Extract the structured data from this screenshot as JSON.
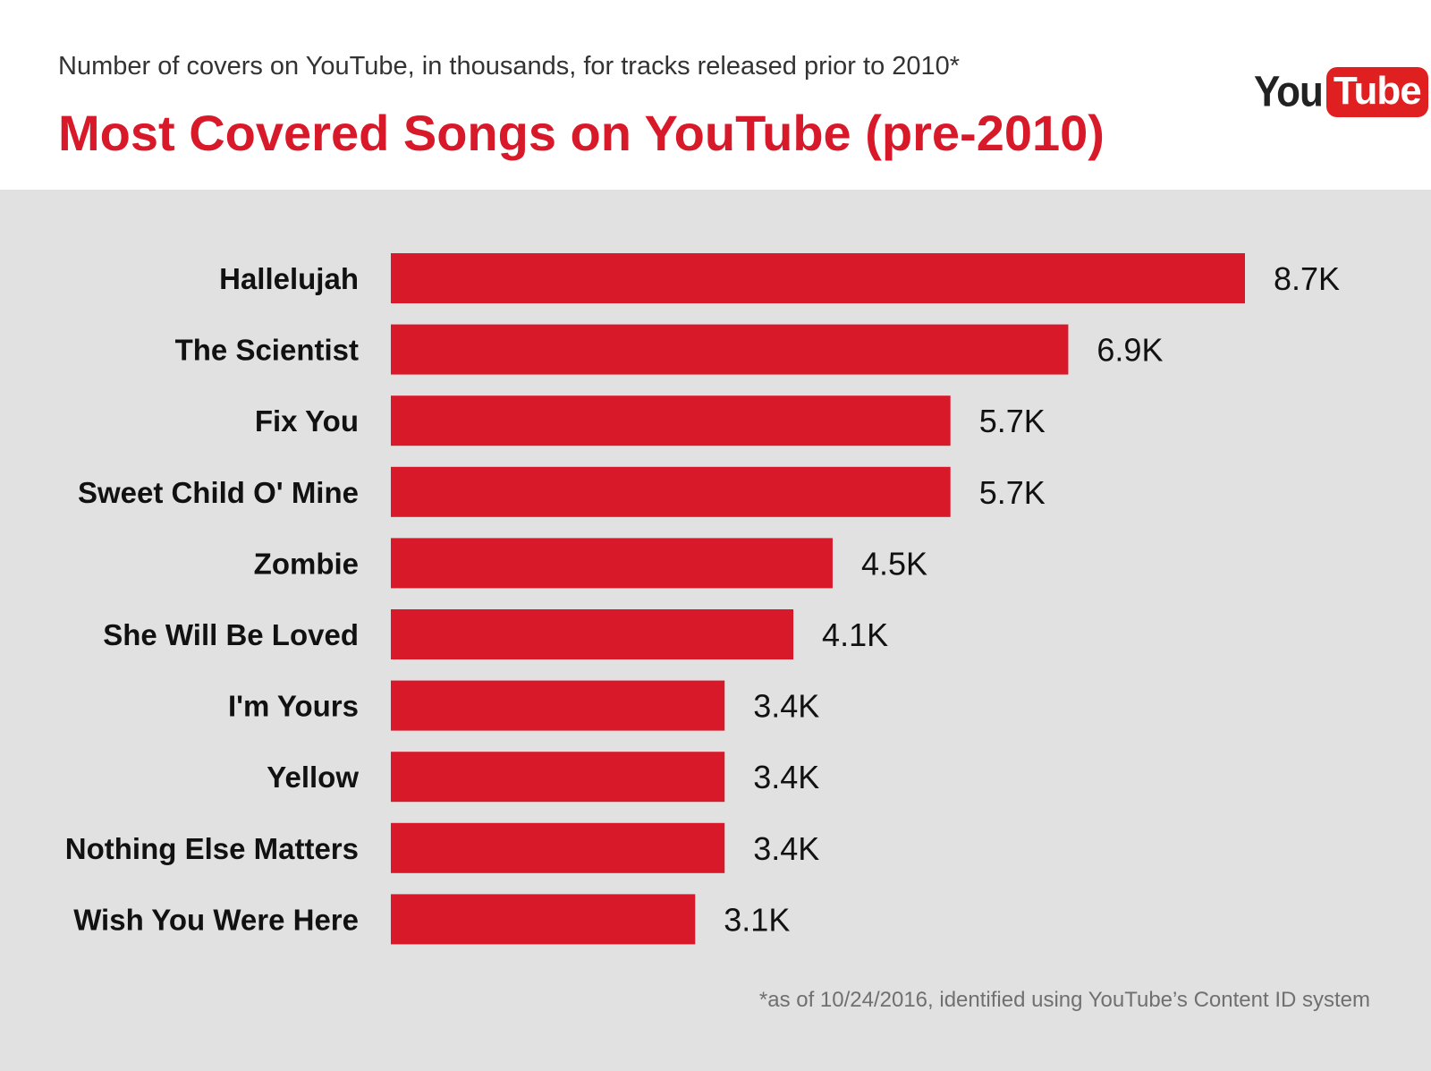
{
  "header": {
    "subtitle": "Number of covers on YouTube, in thousands, for tracks released prior to 2010*",
    "title": "Most Covered Songs on YouTube (pre-2010)",
    "logo_you": "You",
    "logo_tube": "Tube"
  },
  "footnote": "*as of 10/24/2016, identified using YouTube’s Content ID system",
  "colors": {
    "bar": "#d7192a",
    "panel": "#e1e1e1",
    "title": "#d7192a"
  },
  "chart_data": {
    "type": "bar",
    "orientation": "horizontal",
    "title": "Most Covered Songs on YouTube (pre-2010)",
    "subtitle": "Number of covers on YouTube, in thousands, for tracks released prior to 2010*",
    "xlabel": "",
    "ylabel": "",
    "unit": "thousands",
    "categories": [
      "Hallelujah",
      "The Scientist",
      "Fix You",
      "Sweet Child O' Mine",
      "Zombie",
      "She Will Be Loved",
      "I'm Yours",
      "Yellow",
      "Nothing Else Matters",
      "Wish You Were Here"
    ],
    "values": [
      8.7,
      6.9,
      5.7,
      5.7,
      4.5,
      4.1,
      3.4,
      3.4,
      3.4,
      3.1
    ],
    "value_labels": [
      "8.7K",
      "6.9K",
      "5.7K",
      "5.7K",
      "4.5K",
      "4.1K",
      "3.4K",
      "3.4K",
      "3.4K",
      "3.1K"
    ],
    "xlim": [
      0,
      8.7
    ],
    "grid": false,
    "legend": "none"
  }
}
